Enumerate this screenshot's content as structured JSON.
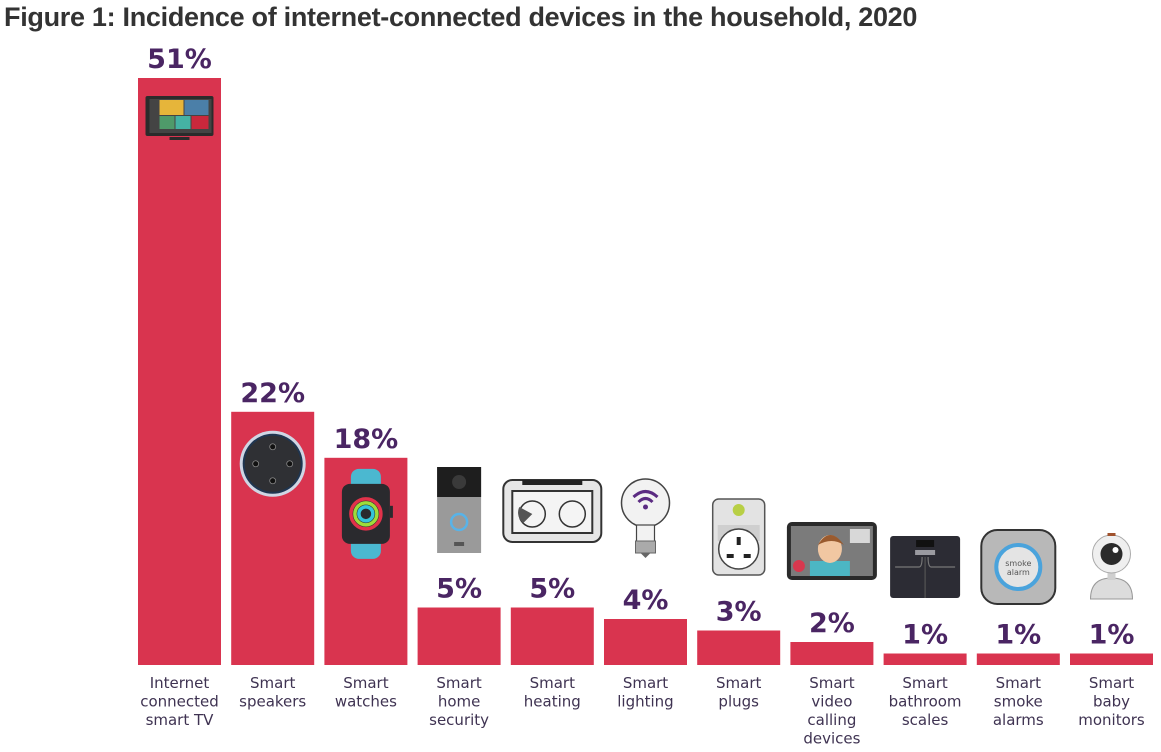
{
  "chart_data": {
    "type": "bar",
    "title": "Figure 1: Incidence of internet-connected devices in the household, 2020",
    "xlabel": "",
    "ylabel": "",
    "ylim": [
      0,
      51
    ],
    "grid": false,
    "legend": "none",
    "value_suffix": "%",
    "bar_color": "#d9344f",
    "label_color": "#4a2563",
    "categories": [
      "Internet connected smart TV",
      "Smart speakers",
      "Smart watches",
      "Smart home security",
      "Smart heating",
      "Smart lighting",
      "Smart plugs",
      "Smart video calling devices",
      "Smart bathroom scales",
      "Smart smoke alarms",
      "Smart baby monitors"
    ],
    "category_label_lines": [
      [
        "Internet",
        "connected",
        "smart TV"
      ],
      [
        "Smart",
        "speakers"
      ],
      [
        "Smart",
        "watches"
      ],
      [
        "Smart",
        "home",
        "security"
      ],
      [
        "Smart",
        "heating"
      ],
      [
        "Smart",
        "lighting"
      ],
      [
        "Smart",
        "plugs"
      ],
      [
        "Smart",
        "video",
        "calling",
        "devices"
      ],
      [
        "Smart",
        "bathroom",
        "scales"
      ],
      [
        "Smart",
        "smoke",
        "alarms"
      ],
      [
        "Smart",
        "baby",
        "monitors"
      ]
    ],
    "values": [
      51,
      22,
      18,
      5,
      5,
      4,
      3,
      2,
      1,
      1,
      1
    ],
    "value_labels": [
      "51%",
      "22%",
      "18%",
      "5%",
      "5%",
      "4%",
      "3%",
      "2%",
      "1%",
      "1%",
      "1%"
    ],
    "icons": [
      "smart-tv-icon",
      "smart-speaker-icon",
      "smartwatch-icon",
      "video-doorbell-icon",
      "thermostat-display-icon",
      "wifi-lightbulb-icon",
      "smart-plug-icon",
      "video-call-tablet-icon",
      "bathroom-scale-icon",
      "smoke-alarm-icon",
      "baby-monitor-camera-icon"
    ]
  }
}
